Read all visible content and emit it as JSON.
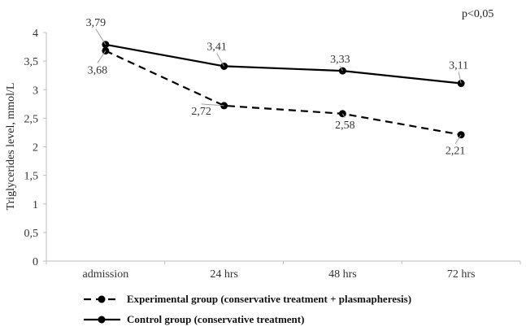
{
  "chart_data": {
    "type": "line",
    "categories": [
      "admission",
      "24 hrs",
      "48 hrs",
      "72 hrs"
    ],
    "series": [
      {
        "name": "Experimental group (conservative treatment + plasmapheresis)",
        "values": [
          3.68,
          2.72,
          2.58,
          2.21
        ],
        "labels": [
          "3,68",
          "2,72",
          "2,58",
          "2,21"
        ],
        "style": "dashed",
        "color": "#000000"
      },
      {
        "name": "Control group (conservative treatment)",
        "values": [
          3.79,
          3.41,
          3.33,
          3.11
        ],
        "labels": [
          "3,79",
          "3,41",
          "3,33",
          "3,11"
        ],
        "style": "solid",
        "color": "#000000"
      }
    ],
    "ylabel": "Triglycerides level, mmol/L",
    "xlabel": "",
    "ylim": [
      0,
      4
    ],
    "yticks": [
      0,
      0.5,
      1,
      1.5,
      2,
      2.5,
      3,
      3.5,
      4
    ],
    "ytick_labels": [
      "0",
      "0,5",
      "1",
      "1,5",
      "2",
      "2,5",
      "3",
      "3,5",
      "4"
    ],
    "annotation": "p<0,05",
    "grid": false,
    "legend_position": "bottom"
  }
}
